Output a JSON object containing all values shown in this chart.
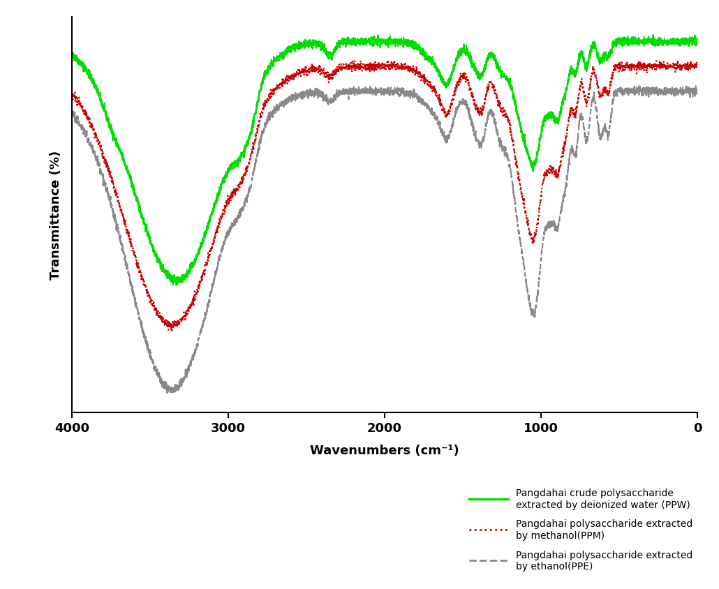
{
  "title": "",
  "xlabel": "Wavenumbers (cm⁻¹)",
  "ylabel": "Transmittance (%)",
  "xlim": [
    4000,
    0
  ],
  "background_color": "#ffffff",
  "legend_labels": [
    "Pangdahai crude polysaccharide\nextracted by deionized water (PPW)",
    "Pangdahai polysaccharide extracted\nby methanol(PPM)",
    "Pangdahai polysaccharide extracted\nby ethanol(PPE)"
  ],
  "line_colors": [
    "#00dd00",
    "#cc0000",
    "#888888"
  ],
  "xticks": [
    4000,
    3000,
    2000,
    1000,
    0
  ]
}
